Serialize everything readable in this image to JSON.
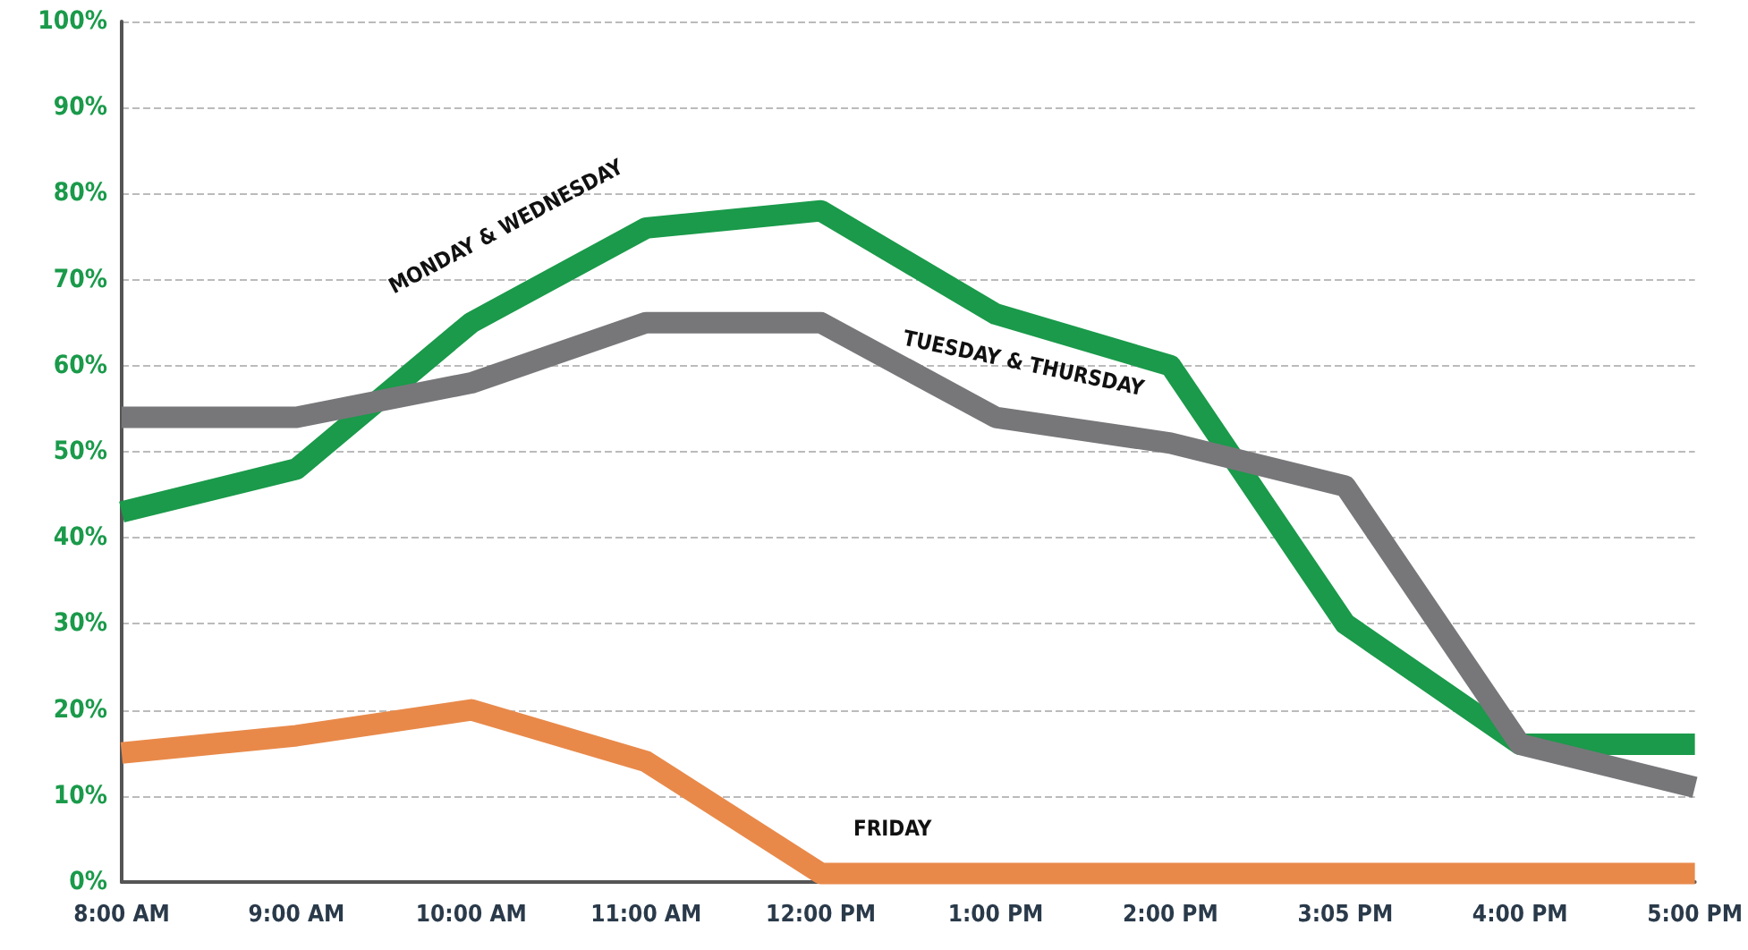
{
  "chart_data": {
    "type": "line",
    "categories": [
      "8:00 AM",
      "9:00 AM",
      "10:00 AM",
      "11:00 AM",
      "12:00 PM",
      "1:00 PM",
      "2:00 PM",
      "3:05 PM",
      "4:00 PM",
      "5:00 PM"
    ],
    "series": [
      {
        "name": "MONDAY & WEDNESDAY",
        "color": "#1a9a4a",
        "values": [
          43,
          48,
          65,
          76,
          78,
          66,
          60,
          30,
          16,
          16
        ]
      },
      {
        "name": "TUESDAY & THURSDAY",
        "color": "#77777a",
        "values": [
          54,
          54,
          58,
          65,
          65,
          54,
          51,
          46,
          16,
          11
        ]
      },
      {
        "name": "FRIDAY",
        "color": "#e8894a",
        "values": [
          15,
          17,
          20,
          14,
          1,
          1,
          1,
          1,
          1,
          1
        ]
      }
    ],
    "ylim": [
      0,
      100
    ],
    "yticks": [
      {
        "value": 0,
        "label": "0%"
      },
      {
        "value": 10,
        "label": "10%"
      },
      {
        "value": 20,
        "label": "20%"
      },
      {
        "value": 30,
        "label": "30%"
      },
      {
        "value": 40,
        "label": "40%"
      },
      {
        "value": 50,
        "label": "50%"
      },
      {
        "value": 60,
        "label": "60%"
      },
      {
        "value": 70,
        "label": "70%"
      },
      {
        "value": 80,
        "label": "80%"
      },
      {
        "value": 90,
        "label": "90%"
      },
      {
        "value": 100,
        "label": "100%"
      }
    ],
    "grid": "y",
    "legend": false,
    "marker": "none",
    "line_style": "solid"
  }
}
